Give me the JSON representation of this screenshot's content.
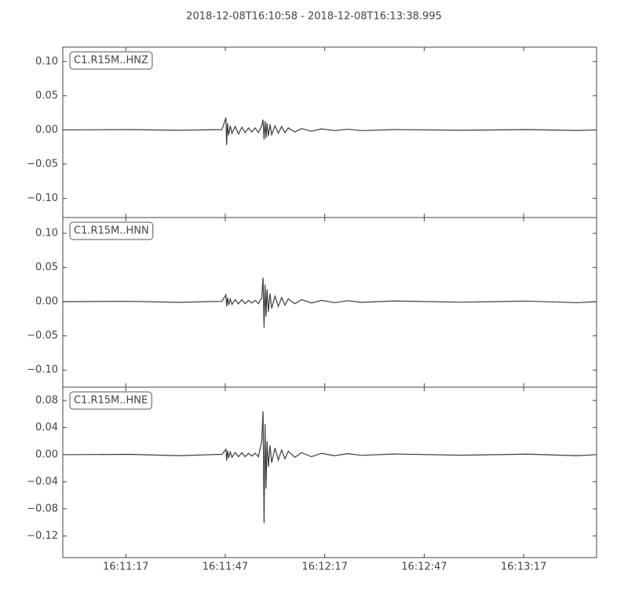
{
  "title": "2018-12-08T16:10:58  -  2018-12-08T16:13:38.995",
  "chart_data": [
    {
      "type": "line",
      "label": "C1.R15M..HNZ",
      "color": "#3c3c3c",
      "x": [
        0,
        20,
        35,
        48,
        49.2,
        49.4,
        49.7,
        50,
        50.5,
        51,
        52,
        53,
        54,
        55,
        56,
        57,
        58,
        59,
        60,
        60.4,
        60.7,
        61,
        61.3,
        61.6,
        62,
        62.5,
        63,
        64,
        65,
        66,
        67,
        68,
        70,
        72,
        75,
        78,
        82,
        86,
        90,
        100,
        120,
        140,
        155,
        160.995
      ],
      "values": [
        0,
        0.0005,
        -0.0005,
        0.0005,
        0.018,
        -0.022,
        0.01,
        -0.008,
        0.006,
        -0.005,
        0.005,
        -0.006,
        0.004,
        -0.004,
        0.003,
        -0.003,
        0.003,
        -0.004,
        0.006,
        0.015,
        -0.014,
        0.013,
        -0.012,
        0.01,
        -0.009,
        0.008,
        -0.007,
        0.006,
        -0.005,
        0.005,
        -0.004,
        0.003,
        -0.003,
        0.002,
        -0.002,
        0.0015,
        -0.001,
        0.001,
        -0.001,
        0.0005,
        -0.0005,
        0.0005,
        -0.0008,
        0
      ],
      "xlim": [
        0,
        160.995
      ],
      "xticks": [
        19,
        49,
        79,
        109,
        139
      ],
      "ylim": [
        -0.128,
        0.121
      ],
      "yticks": [
        {
          "value": 0.1,
          "label": "0.10"
        },
        {
          "value": 0.05,
          "label": "0.05"
        },
        {
          "value": 0,
          "label": "0.00"
        },
        {
          "value": -0.05,
          "label": "−0.05"
        },
        {
          "value": -0.1,
          "label": "−0.10"
        }
      ]
    },
    {
      "type": "line",
      "label": "C1.R15M..HNN",
      "color": "#3c3c3c",
      "x": [
        0,
        20,
        35,
        48,
        49.2,
        49.4,
        49.7,
        50,
        50.5,
        51,
        52,
        53,
        54,
        55,
        56,
        57,
        58,
        59,
        60,
        60.4,
        60.7,
        61,
        61.3,
        61.6,
        62,
        62.5,
        63,
        64,
        65,
        66,
        67,
        68,
        70,
        72,
        75,
        78,
        82,
        86,
        90,
        100,
        120,
        140,
        155,
        160.995
      ],
      "values": [
        0,
        0.0005,
        -0.001,
        0.0005,
        0.01,
        -0.007,
        0.006,
        -0.005,
        0.004,
        -0.004,
        0.003,
        -0.003,
        0.003,
        -0.003,
        0.002,
        -0.002,
        0.002,
        -0.003,
        0.006,
        0.035,
        -0.038,
        0.025,
        -0.022,
        0.018,
        -0.015,
        0.012,
        -0.01,
        0.008,
        -0.007,
        0.006,
        -0.005,
        0.004,
        -0.003,
        0.003,
        -0.002,
        0.002,
        -0.0015,
        0.0015,
        -0.001,
        0.001,
        -0.0008,
        0.0008,
        -0.0015,
        0
      ],
      "xlim": [
        0,
        160.995
      ],
      "xticks": [
        19,
        49,
        79,
        109,
        139
      ],
      "ylim": [
        -0.125,
        0.123
      ],
      "yticks": [
        {
          "value": 0.1,
          "label": "0.10"
        },
        {
          "value": 0.05,
          "label": "0.05"
        },
        {
          "value": 0,
          "label": "0.00"
        },
        {
          "value": -0.05,
          "label": "−0.05"
        },
        {
          "value": -0.1,
          "label": "−0.10"
        }
      ]
    },
    {
      "type": "line",
      "label": "C1.R15M..HNE",
      "color": "#3c3c3c",
      "x": [
        0,
        20,
        35,
        48,
        49.2,
        49.4,
        49.7,
        50,
        50.5,
        51,
        52,
        53,
        54,
        55,
        56,
        57,
        58,
        59,
        60,
        60.4,
        60.7,
        61,
        61.3,
        61.6,
        62,
        62.5,
        63,
        64,
        65,
        66,
        67,
        68,
        70,
        72,
        75,
        78,
        82,
        86,
        90,
        100,
        120,
        140,
        155,
        160.995
      ],
      "values": [
        0,
        0.0005,
        -0.0015,
        0.0005,
        0.008,
        -0.009,
        0.006,
        -0.005,
        0.004,
        -0.004,
        0.003,
        -0.003,
        0.003,
        -0.003,
        0.002,
        -0.002,
        0.002,
        -0.003,
        0.02,
        0.064,
        -0.101,
        0.045,
        -0.05,
        0.02,
        -0.018,
        0.014,
        -0.012,
        0.01,
        -0.008,
        0.007,
        -0.006,
        0.005,
        -0.004,
        0.003,
        -0.003,
        0.002,
        -0.0015,
        0.0015,
        -0.001,
        0.001,
        -0.0008,
        0.0008,
        -0.0015,
        0
      ],
      "xlim": [
        0,
        160.995
      ],
      "xticks": [
        {
          "value": 19,
          "label": "16:11:17"
        },
        {
          "value": 49,
          "label": "16:11:47"
        },
        {
          "value": 79,
          "label": "16:12:17"
        },
        {
          "value": 109,
          "label": "16:12:47"
        },
        {
          "value": 139,
          "label": "16:13:17"
        }
      ],
      "ylim": [
        -0.152,
        0.0997
      ],
      "yticks": [
        {
          "value": 0.08,
          "label": "0.08"
        },
        {
          "value": 0.04,
          "label": "0.04"
        },
        {
          "value": 0,
          "label": "0.00"
        },
        {
          "value": -0.04,
          "label": "−0.04"
        },
        {
          "value": -0.08,
          "label": "−0.08"
        },
        {
          "value": -0.12,
          "label": "−0.12"
        }
      ]
    }
  ]
}
